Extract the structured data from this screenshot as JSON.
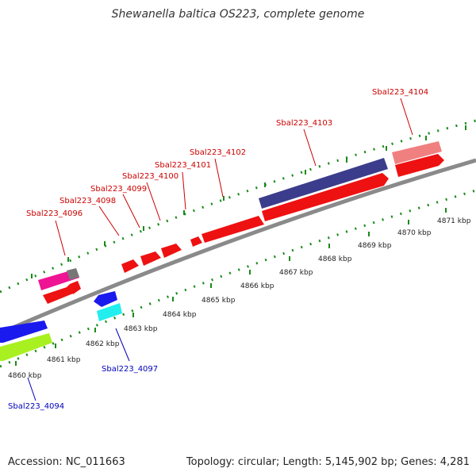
{
  "title": "Shewanella baltica OS223, complete genome",
  "footer": {
    "accession": "Accession: NC_011663",
    "summary": "Topology: circular; Length: 5,145,902 bp; Genes: 4,281"
  },
  "colors": {
    "forward_label": "#cc0000",
    "reverse_label": "#0000bb",
    "backbone": "#888888",
    "tick": "#1a8a1a"
  },
  "scale_labels": [
    "4860 kbp",
    "4861 kbp",
    "4862 kbp",
    "4863 kbp",
    "4864 kbp",
    "4865 kbp",
    "4866 kbp",
    "4867 kbp",
    "4868 kbp",
    "4869 kbp",
    "4870 kbp",
    "4871 kbp"
  ],
  "gene_labels": [
    {
      "text": "Sbal223_4094",
      "strand": "reverse"
    },
    {
      "text": "Sbal223_4096",
      "strand": "forward"
    },
    {
      "text": "Sbal223_4097",
      "strand": "reverse"
    },
    {
      "text": "Sbal223_4098",
      "strand": "forward"
    },
    {
      "text": "Sbal223_4099",
      "strand": "forward"
    },
    {
      "text": "Sbal223_4100",
      "strand": "forward"
    },
    {
      "text": "Sbal223_4101",
      "strand": "forward"
    },
    {
      "text": "Sbal223_4102",
      "strand": "forward"
    },
    {
      "text": "Sbal223_4103",
      "strand": "forward"
    },
    {
      "text": "Sbal223_4104",
      "strand": "forward"
    }
  ]
}
